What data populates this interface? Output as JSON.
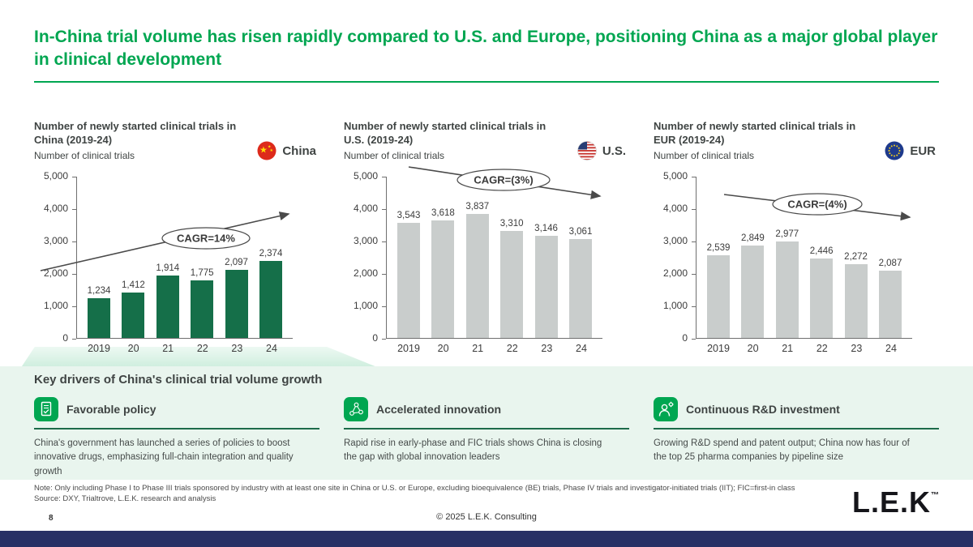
{
  "header": {
    "title": "In-China trial volume has risen rapidly compared to U.S. and Europe, positioning China as a major global player in clinical development"
  },
  "chart_data": [
    {
      "type": "bar",
      "title": "Number of newly started clinical trials in China (2019-24)",
      "ylabel": "Number of clinical trials",
      "region": "China",
      "flag": "china-flag-icon",
      "categories": [
        "2019",
        "20",
        "21",
        "22",
        "23",
        "24"
      ],
      "values": [
        1234,
        1412,
        1914,
        1775,
        2097,
        2374
      ],
      "value_labels": [
        "1,234",
        "1,412",
        "1,914",
        "1,775",
        "2,097",
        "2,374"
      ],
      "cagr_label": "CAGR=14%",
      "trend": "up",
      "ylim": [
        0,
        5000
      ],
      "yticks": [
        "5,000",
        "4,000",
        "3,000",
        "2,000",
        "1,000",
        "0"
      ],
      "bar_color": "#156f49"
    },
    {
      "type": "bar",
      "title": "Number of newly started clinical trials in U.S. (2019-24)",
      "ylabel": "Number of clinical trials",
      "region": "U.S.",
      "flag": "us-flag-icon",
      "categories": [
        "2019",
        "20",
        "21",
        "22",
        "23",
        "24"
      ],
      "values": [
        3543,
        3618,
        3837,
        3310,
        3146,
        3061
      ],
      "value_labels": [
        "3,543",
        "3,618",
        "3,837",
        "3,310",
        "3,146",
        "3,061"
      ],
      "cagr_label": "CAGR=(3%)",
      "trend": "down",
      "ylim": [
        0,
        5000
      ],
      "yticks": [
        "5,000",
        "4,000",
        "3,000",
        "2,000",
        "1,000",
        "0"
      ],
      "bar_color": "#c9cdcc"
    },
    {
      "type": "bar",
      "title": "Number of newly started clinical trials in EUR (2019-24)",
      "ylabel": "Number of clinical trials",
      "region": "EUR",
      "flag": "eu-flag-icon",
      "categories": [
        "2019",
        "20",
        "21",
        "22",
        "23",
        "24"
      ],
      "values": [
        2539,
        2849,
        2977,
        2446,
        2272,
        2087
      ],
      "value_labels": [
        "2,539",
        "2,849",
        "2,977",
        "2,446",
        "2,272",
        "2,087"
      ],
      "cagr_label": "CAGR=(4%)",
      "trend": "down",
      "ylim": [
        0,
        5000
      ],
      "yticks": [
        "5,000",
        "4,000",
        "3,000",
        "2,000",
        "1,000",
        "0"
      ],
      "bar_color": "#c9cdcc"
    }
  ],
  "key_drivers": {
    "title": "Key drivers of China's clinical trial volume growth",
    "items": [
      {
        "icon": "favorable-policy-icon",
        "title": "Favorable policy",
        "text": "China's government has launched a series of policies to boost innovative drugs, emphasizing full-chain integration and quality growth"
      },
      {
        "icon": "accelerated-innovation-icon",
        "title": "Accelerated innovation",
        "text": "Rapid rise in early-phase and FIC trials shows China is closing the gap with global innovation leaders"
      },
      {
        "icon": "rd-investment-icon",
        "title": "Continuous R&D investment",
        "text": "Growing R&D spend and patent output; China now has four of the top 25 pharma companies by pipeline size"
      }
    ]
  },
  "footnotes": {
    "note": "Note: Only including Phase I to Phase III trials sponsored by industry with at least one site in China or U.S. or Europe, excluding bioequivalence (BE) trials, Phase IV trials and investigator-initiated trials (IIT); FIC=first-in class",
    "source": "Source: DXY, Trialtrove, L.E.K. research and analysis"
  },
  "footer": {
    "page_number": "8",
    "copyright": "© 2025 L.E.K. Consulting",
    "logo": "L.E.K",
    "logo_tm": "™"
  },
  "colors": {
    "accent_green": "#00a651",
    "bar_green": "#156f49",
    "bar_gray": "#c9cdcc",
    "band_bg": "#e9f5ee",
    "footer_bar": "#273065"
  }
}
